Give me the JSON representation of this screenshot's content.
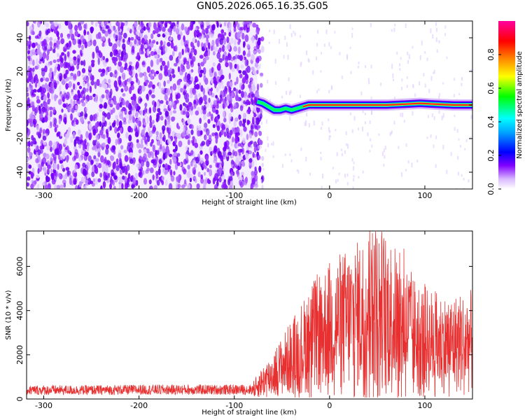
{
  "title": "GN05.2026.065.16.35.G05",
  "chart_data": [
    {
      "type": "heatmap",
      "xlabel": "Height of straight line (km)",
      "ylabel": "Frequency (Hz)",
      "xlim": [
        -318,
        150
      ],
      "ylim": [
        -50,
        50
      ],
      "x_ticks": [
        -300,
        -200,
        -100,
        0,
        100
      ],
      "y_ticks": [
        -40,
        -20,
        0,
        20,
        40
      ],
      "noise_region_x": [
        -318,
        -76
      ],
      "signal_track": [
        {
          "x": -76,
          "y": 2
        },
        {
          "x": -70,
          "y": 1
        },
        {
          "x": -64,
          "y": -1
        },
        {
          "x": -58,
          "y": -3
        },
        {
          "x": -52,
          "y": -3
        },
        {
          "x": -46,
          "y": -2
        },
        {
          "x": -40,
          "y": -3
        },
        {
          "x": -34,
          "y": -2
        },
        {
          "x": -28,
          "y": -1
        },
        {
          "x": -22,
          "y": 0
        },
        {
          "x": -16,
          "y": 0
        },
        {
          "x": -10,
          "y": 0
        },
        {
          "x": 0,
          "y": 0
        },
        {
          "x": 20,
          "y": 0
        },
        {
          "x": 40,
          "y": 0
        },
        {
          "x": 60,
          "y": 0
        },
        {
          "x": 80,
          "y": 0.5
        },
        {
          "x": 95,
          "y": 1
        },
        {
          "x": 110,
          "y": 0.5
        },
        {
          "x": 130,
          "y": 0
        },
        {
          "x": 150,
          "y": 0
        }
      ],
      "colorbar": {
        "label": "Normalized spectral amplitude",
        "ticks": [
          "0.0",
          "0.2",
          "0.4",
          "0.6",
          "0.8"
        ],
        "range": [
          0,
          1
        ],
        "colors": [
          "#ffffff",
          "#8000ff",
          "#0000ff",
          "#00a0ff",
          "#00ffff",
          "#00ff00",
          "#ffff00",
          "#ff8000",
          "#ff0000",
          "#ff00a0"
        ]
      }
    },
    {
      "type": "line",
      "xlabel": "Height of straight line (km)",
      "ylabel": "SNR (10 * v/v)",
      "xlim": [
        -318,
        150
      ],
      "ylim": [
        0,
        7600
      ],
      "x_ticks": [
        -300,
        -200,
        -100,
        0,
        100
      ],
      "y_ticks": [
        0,
        2000,
        4000,
        6000
      ],
      "color": "#e83030",
      "series": [
        {
          "x": [
            -318,
            -300,
            -250,
            -200,
            -150,
            -100,
            -80,
            -70,
            -60,
            -50,
            -40,
            -30,
            -20,
            -10,
            0,
            10,
            20,
            30,
            40,
            45,
            50,
            60,
            70,
            80,
            90,
            100,
            110,
            120,
            130,
            140,
            150
          ],
          "values": [
            400,
            400,
            400,
            420,
            420,
            420,
            430,
            800,
            1100,
            1500,
            1900,
            2300,
            2700,
            3100,
            3300,
            3500,
            3600,
            3800,
            4000,
            4300,
            4200,
            4000,
            3600,
            3300,
            2900,
            2700,
            2600,
            2500,
            2500,
            2600,
            2600
          ],
          "peaks": [
            {
              "x": -22,
              "y": 4600
            },
            {
              "x": -10,
              "y": 4500
            },
            {
              "x": 20,
              "y": 4900
            },
            {
              "x": 45,
              "y": 7500
            },
            {
              "x": 55,
              "y": 6600
            },
            {
              "x": 78,
              "y": 6800
            },
            {
              "x": 100,
              "y": 5200
            },
            {
              "x": 140,
              "y": 4000
            }
          ]
        }
      ]
    }
  ]
}
